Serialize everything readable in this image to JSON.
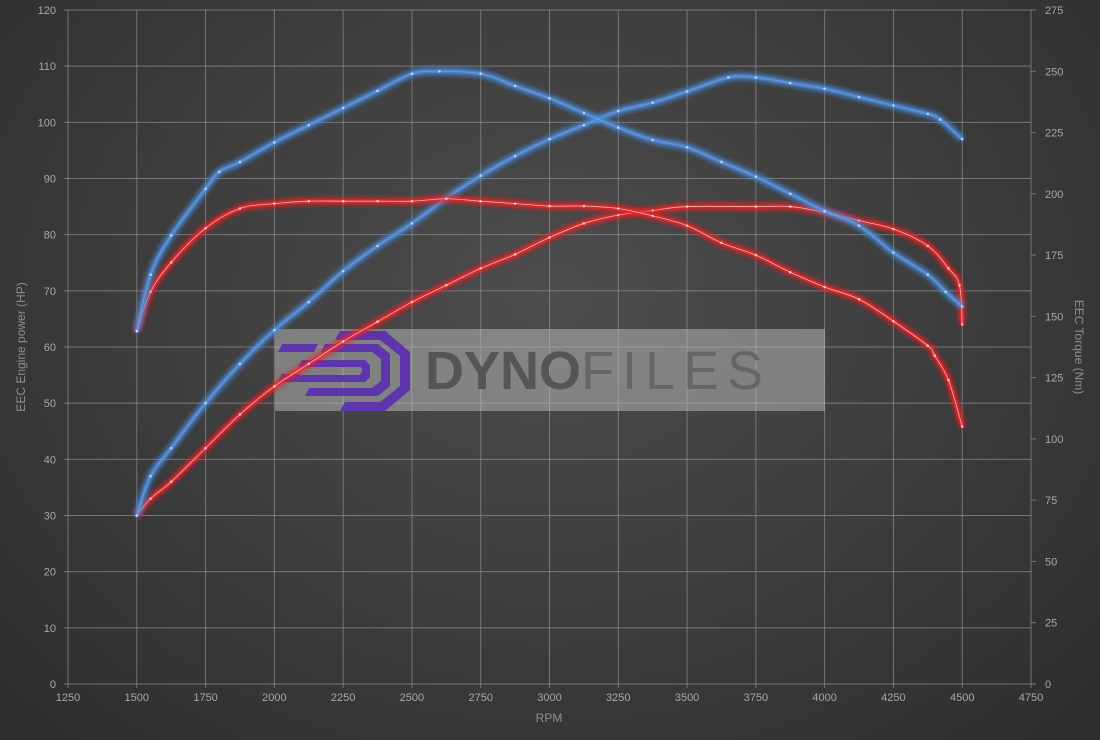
{
  "chart_data": {
    "type": "line",
    "xlabel": "RPM",
    "ylabel_left": "EEC Engine power (HP)",
    "ylabel_right": "EEC Torque (Nm)",
    "xlim": [
      1250,
      4750
    ],
    "ylim_left": [
      0,
      120
    ],
    "ylim_right": [
      0,
      275
    ],
    "x_ticks": [
      1250,
      1500,
      1750,
      2000,
      2250,
      2500,
      2750,
      3000,
      3250,
      3500,
      3750,
      4000,
      4250,
      4500,
      4750
    ],
    "y_ticks_left": [
      0,
      10,
      20,
      30,
      40,
      50,
      60,
      70,
      80,
      90,
      100,
      110,
      120
    ],
    "y_ticks_right": [
      0,
      25,
      50,
      75,
      100,
      125,
      150,
      175,
      200,
      225,
      250,
      275
    ],
    "grid": true,
    "colors": {
      "stock": "#e8262a",
      "tuned": "#4a8fe0"
    },
    "series": [
      {
        "axis": "left",
        "color": "stock",
        "x": [
          1500,
          1550,
          1625,
          1750,
          1875,
          2000,
          2125,
          2250,
          2375,
          2500,
          2625,
          2750,
          2875,
          3000,
          3125,
          3250,
          3375,
          3500,
          3750,
          3875,
          4000,
          4125,
          4250,
          4375,
          4450,
          4490,
          4500
        ],
        "y": [
          30,
          33,
          36,
          42,
          48,
          53,
          57,
          61,
          64.5,
          68,
          71,
          74,
          76.5,
          79.5,
          82,
          83.5,
          84.3,
          85,
          85,
          85,
          84,
          82.5,
          81,
          78,
          74,
          71,
          64
        ]
      },
      {
        "axis": "left",
        "color": "tuned",
        "x": [
          1500,
          1550,
          1625,
          1750,
          1875,
          2000,
          2125,
          2250,
          2375,
          2500,
          2625,
          2750,
          2875,
          3000,
          3125,
          3250,
          3375,
          3500,
          3650,
          3750,
          3875,
          4000,
          4125,
          4250,
          4375,
          4420,
          4500
        ],
        "y": [
          30,
          37,
          42,
          50,
          57,
          63,
          68,
          73.5,
          78,
          82,
          86.5,
          90.5,
          94,
          97,
          99.5,
          102,
          103.5,
          105.5,
          108,
          108,
          107,
          106,
          104.5,
          103,
          101.5,
          100.5,
          97
        ]
      },
      {
        "axis": "right",
        "color": "stock",
        "x": [
          1500,
          1550,
          1625,
          1750,
          1875,
          2000,
          2125,
          2250,
          2375,
          2500,
          2625,
          2750,
          2875,
          3000,
          3125,
          3250,
          3375,
          3500,
          3625,
          3750,
          3875,
          4000,
          4125,
          4250,
          4375,
          4400,
          4450,
          4500
        ],
        "y": [
          144,
          160,
          172,
          186,
          194,
          196,
          197,
          197,
          197,
          197,
          198,
          197,
          196,
          195,
          195,
          194,
          191,
          187,
          180,
          175,
          168,
          162,
          157,
          148,
          138,
          134,
          124,
          105
        ]
      },
      {
        "axis": "right",
        "color": "tuned",
        "x": [
          1500,
          1550,
          1625,
          1750,
          1800,
          1875,
          2000,
          2125,
          2250,
          2375,
          2500,
          2600,
          2750,
          2875,
          3000,
          3125,
          3250,
          3375,
          3500,
          3625,
          3750,
          3875,
          4000,
          4125,
          4250,
          4375,
          4440,
          4500
        ],
        "y": [
          144,
          167,
          183,
          202,
          209,
          213,
          221,
          228,
          235,
          242,
          249,
          250,
          249,
          244,
          239,
          233,
          227,
          222,
          219,
          213,
          207,
          200,
          193,
          187,
          176,
          167,
          160,
          154
        ]
      }
    ]
  },
  "watermark": {
    "text_bold": "DYNO",
    "text_light": "FILES"
  }
}
